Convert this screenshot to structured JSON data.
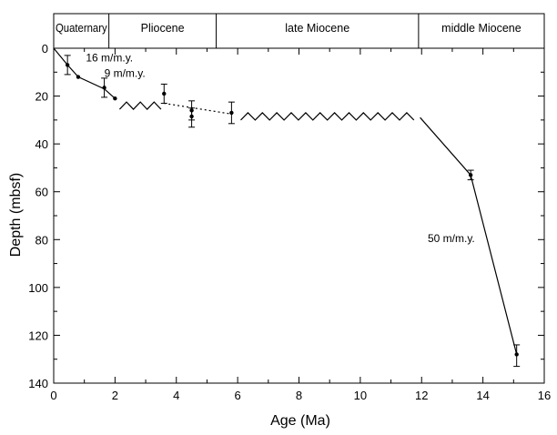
{
  "chart_data": {
    "type": "scatter",
    "xlabel": "Age (Ma)",
    "ylabel": "Depth (mbsf)",
    "xlim": [
      0,
      16
    ],
    "ylim": [
      0,
      140
    ],
    "y_inverted": true,
    "grid": false,
    "x_ticks": [
      "0",
      "2",
      "4",
      "6",
      "8",
      "10",
      "12",
      "14",
      "16"
    ],
    "y_ticks": [
      "0",
      "20",
      "40",
      "60",
      "80",
      "100",
      "120",
      "140"
    ],
    "epochs": [
      {
        "label": "Quaternary",
        "start": 0,
        "end": 1.8
      },
      {
        "label": "Pliocene",
        "start": 1.8,
        "end": 5.3
      },
      {
        "label": "late Miocene",
        "start": 5.3,
        "end": 11.9
      },
      {
        "label": "middle Miocene",
        "start": 11.9,
        "end": 16
      }
    ],
    "points": [
      {
        "x": 0.45,
        "y": 7,
        "err_low": 3,
        "err_high": 11
      },
      {
        "x": 0.8,
        "y": 12
      },
      {
        "x": 1.65,
        "y": 16.5,
        "err_low": 12.5,
        "err_high": 20.5
      },
      {
        "x": 2.0,
        "y": 21
      },
      {
        "x": 3.6,
        "y": 19,
        "err_low": 15,
        "err_high": 23
      },
      {
        "x": 4.5,
        "y": 26,
        "err_low": 22,
        "err_high": 30
      },
      {
        "x": 4.5,
        "y": 28.5,
        "err_low": 25,
        "err_high": 33
      },
      {
        "x": 5.8,
        "y": 27,
        "err_low": 22.5,
        "err_high": 31.5
      },
      {
        "x": 13.6,
        "y": 53,
        "err_low": 51,
        "err_high": 55
      },
      {
        "x": 15.1,
        "y": 128,
        "err_low": 124,
        "err_high": 133
      }
    ],
    "lines": [
      {
        "name": "16 m/m.y.",
        "style": "solid",
        "points": [
          [
            0,
            0
          ],
          [
            0.45,
            7
          ],
          [
            0.8,
            12
          ],
          [
            1.65,
            17
          ],
          [
            2.0,
            21
          ]
        ]
      },
      {
        "name": "9 m/m.y.",
        "style": "dotted",
        "points": [
          [
            3.6,
            23
          ],
          [
            5.8,
            27.5
          ]
        ]
      },
      {
        "name": "50 m/m.y.",
        "style": "solid",
        "points": [
          [
            11.95,
            29
          ],
          [
            13.6,
            53
          ],
          [
            15.1,
            128
          ]
        ]
      }
    ],
    "hiatuses": [
      {
        "x_start": 2.15,
        "x_end": 3.5,
        "y": 24
      },
      {
        "x_start": 6.1,
        "x_end": 11.75,
        "y": 28.5
      }
    ],
    "annotations": [
      {
        "text": "16 m/m.y.",
        "x": 1.05,
        "y": 5.5
      },
      {
        "text": "9 m/m.y.",
        "x": 1.65,
        "y": 12
      },
      {
        "text": "50 m/m.y.",
        "x": 12.2,
        "y": 81
      }
    ]
  }
}
